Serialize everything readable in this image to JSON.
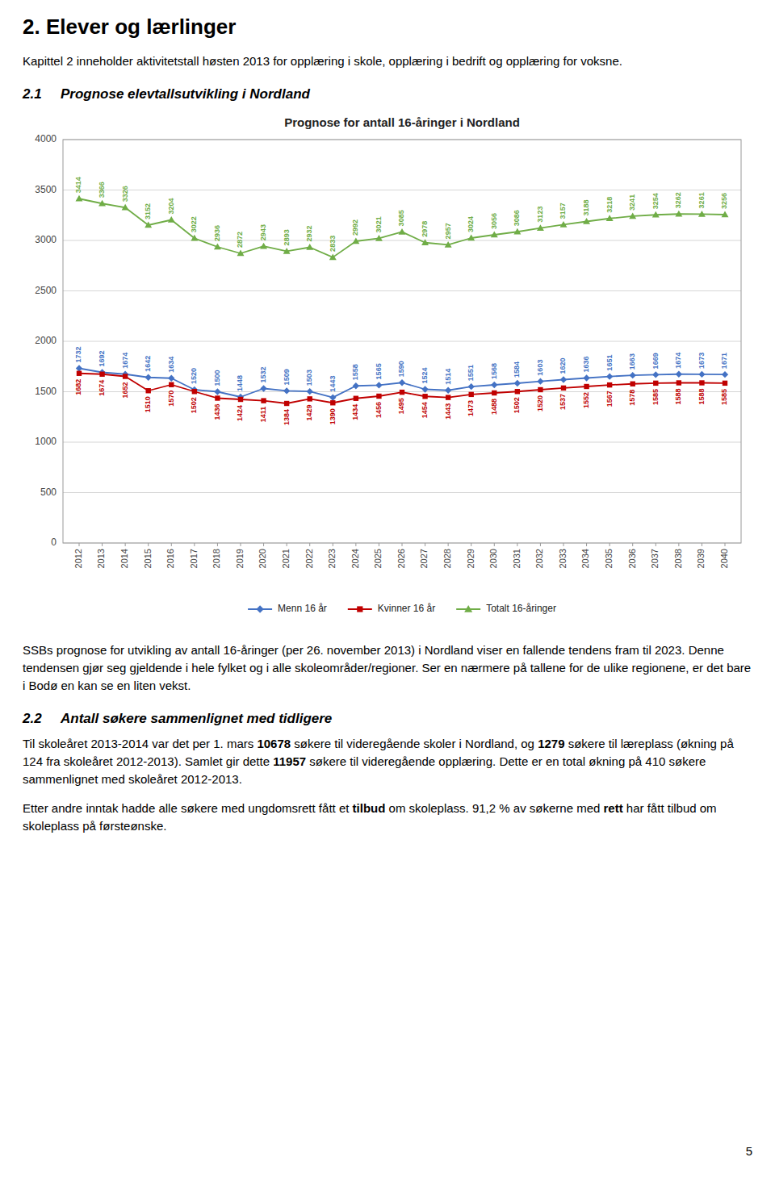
{
  "page": {
    "title": "2. Elever og lærlinger",
    "para1": "Kapittel 2 inneholder aktivitetstall høsten 2013 for opplæring i skole, opplæring i bedrift og opplæring for voksne.",
    "section_21": {
      "number": "2.1",
      "title": "Prognose elevtallsutvikling i Nordland"
    },
    "para2": "SSBs prognose for utvikling av antall 16-åringer (per 26. november 2013) i Nordland viser en fallende tendens fram til 2023. Denne tendensen gjør seg gjeldende i hele fylket og i alle skoleområder/regioner. Ser en nærmere på tallene for de ulike regionene, er det bare i Bodø en kan se en liten vekst.",
    "section_22": {
      "number": "2.2",
      "title": "Antall søkere sammenlignet med tidligere"
    },
    "para3": [
      {
        "text": "Til skoleåret 2013-2014 var det per 1. mars ",
        "bold": false
      },
      {
        "text": "10678",
        "bold": true
      },
      {
        "text": " søkere til videregående skoler i Nordland, og ",
        "bold": false
      },
      {
        "text": "1279",
        "bold": true
      },
      {
        "text": " søkere til læreplass (økning på 124 fra skoleåret 2012-2013). Samlet gir dette ",
        "bold": false
      },
      {
        "text": "11957",
        "bold": true
      },
      {
        "text": " søkere til videregående opplæring. Dette er en total økning på 410 søkere sammenlignet med skoleåret 2012-2013.",
        "bold": false
      }
    ],
    "para4": [
      {
        "text": "Etter andre inntak hadde alle søkere med ungdomsrett fått et ",
        "bold": false
      },
      {
        "text": "tilbud",
        "bold": true
      },
      {
        "text": " om skoleplass. 91,2 % av søkerne med ",
        "bold": false
      },
      {
        "text": "rett",
        "bold": true
      },
      {
        "text": " har fått tilbud om skoleplass på førsteønske.",
        "bold": false
      }
    ],
    "page_number": "5"
  },
  "chart_data": {
    "type": "line",
    "title": "Prognose for antall 16-åringer i Nordland",
    "x": [
      2012,
      2013,
      2014,
      2015,
      2016,
      2017,
      2018,
      2019,
      2020,
      2021,
      2022,
      2023,
      2024,
      2025,
      2026,
      2027,
      2028,
      2029,
      2030,
      2031,
      2032,
      2033,
      2034,
      2035,
      2036,
      2037,
      2038,
      2039,
      2040
    ],
    "series": [
      {
        "name": "Menn 16 år",
        "color": "#4472C4",
        "marker": "diamond",
        "values": [
          1732,
          1692,
          1674,
          1642,
          1634,
          1520,
          1500,
          1448,
          1532,
          1509,
          1503,
          1443,
          1558,
          1565,
          1590,
          1524,
          1514,
          1551,
          1568,
          1584,
          1603,
          1620,
          1636,
          1651,
          1663,
          1669,
          1674,
          1673,
          1671
        ]
      },
      {
        "name": "Kvinner 16 år",
        "color": "#C00000",
        "marker": "square",
        "values": [
          1682,
          1674,
          1652,
          1510,
          1570,
          1502,
          1436,
          1424,
          1411,
          1384,
          1429,
          1390,
          1434,
          1456,
          1495,
          1454,
          1443,
          1473,
          1488,
          1502,
          1520,
          1537,
          1552,
          1567,
          1578,
          1585,
          1588,
          1588,
          1585
        ]
      },
      {
        "name": "Totalt 16-åringer",
        "color": "#70AD47",
        "marker": "triangle",
        "values": [
          3414,
          3366,
          3326,
          3152,
          3204,
          3022,
          2936,
          2872,
          2943,
          2893,
          2932,
          2833,
          2992,
          3021,
          3085,
          2978,
          2957,
          3024,
          3056,
          3086,
          3123,
          3157,
          3188,
          3218,
          3241,
          3254,
          3262,
          3261,
          3256
        ]
      }
    ],
    "xlim": [
      2011.3,
      2040.7
    ],
    "xticks": [
      2012,
      2013,
      2014,
      2015,
      2016,
      2017,
      2018,
      2019,
      2020,
      2021,
      2022,
      2023,
      2024,
      2025,
      2026,
      2027,
      2028,
      2029,
      2030,
      2031,
      2032,
      2033,
      2034,
      2035,
      2036,
      2037,
      2038,
      2039,
      2040
    ],
    "ylim": [
      0,
      4000
    ],
    "yticks": [
      0,
      500,
      1000,
      1500,
      2000,
      2500,
      3000,
      3500,
      4000
    ],
    "grid": true,
    "legend": "bottom",
    "data_labels": true
  }
}
